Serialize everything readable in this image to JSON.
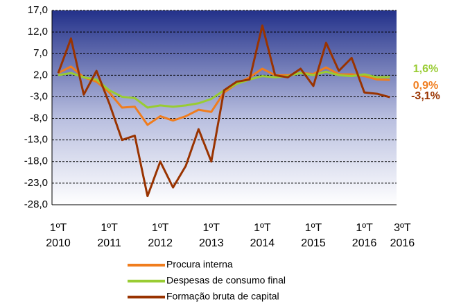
{
  "chart_data": {
    "type": "line",
    "categories": [
      "1ºT\n2010",
      null,
      null,
      null,
      "1ºT\n2011",
      null,
      null,
      null,
      "1ºT\n2012",
      null,
      null,
      null,
      "1ºT\n2013",
      null,
      null,
      null,
      "1ºT\n2014",
      null,
      null,
      null,
      "1ºT\n2015",
      null,
      null,
      null,
      "1ºT\n2016",
      null,
      "3ºT\n2016"
    ],
    "series": [
      {
        "name": "Procura interna",
        "color": "#f07d1e",
        "values": [
          2.5,
          4,
          1.5,
          0.5,
          -2,
          -5.5,
          -5.3,
          -9.5,
          -7.5,
          -8.5,
          -7.5,
          -6,
          -6.5,
          -2,
          0,
          1.5,
          3.5,
          2,
          2,
          2.5,
          2.3,
          3.8,
          2.2,
          2.2,
          1.8,
          1,
          0.9
        ],
        "value_labels": [
          null,
          null,
          null,
          null,
          null,
          null,
          null,
          null,
          null,
          null,
          null,
          null,
          null,
          null,
          null,
          null,
          null,
          null,
          null,
          null,
          null,
          null,
          null,
          null,
          null,
          null,
          "0,9%"
        ]
      },
      {
        "name": "Despesas de consumo final",
        "color": "#99cc33",
        "values": [
          2,
          2.5,
          1.5,
          1,
          -1.5,
          -3,
          -3.3,
          -5.5,
          -5,
          -5.3,
          -5,
          -4.5,
          -3.5,
          -1.5,
          0,
          1,
          1.8,
          1.5,
          1.8,
          2.5,
          2,
          2.8,
          2,
          1.8,
          2.2,
          1.5,
          1.6
        ],
        "value_labels": [
          null,
          null,
          null,
          null,
          null,
          null,
          null,
          null,
          null,
          null,
          null,
          null,
          null,
          null,
          null,
          null,
          null,
          null,
          null,
          null,
          null,
          null,
          null,
          null,
          null,
          null,
          "1,6%"
        ]
      },
      {
        "name": "Formação bruta de capital",
        "color": "#993300",
        "values": [
          2.5,
          10.5,
          -2.5,
          3,
          -4.5,
          -13,
          -12,
          -26,
          -18,
          -24,
          -19,
          -10.5,
          -18,
          -1.5,
          0.5,
          1,
          13.5,
          2,
          1.5,
          3.5,
          -0.5,
          9.5,
          3,
          6,
          -2,
          -2.3,
          -3.1
        ],
        "value_labels": [
          null,
          null,
          null,
          null,
          null,
          null,
          null,
          null,
          null,
          null,
          null,
          null,
          null,
          null,
          null,
          null,
          null,
          null,
          null,
          null,
          null,
          null,
          null,
          null,
          null,
          null,
          "-3,1%"
        ]
      }
    ],
    "ylim": [
      -28,
      17
    ],
    "yticks": [
      {
        "value": -28,
        "label": "-28,0"
      },
      {
        "value": -23,
        "label": "-23,0"
      },
      {
        "value": -18,
        "label": "-18,0"
      },
      {
        "value": -13,
        "label": "-13,0"
      },
      {
        "value": -8,
        "label": "-8,0"
      },
      {
        "value": -3,
        "label": "-3,0"
      },
      {
        "value": 2,
        "label": "2,0"
      },
      {
        "value": 7,
        "label": "7,0"
      },
      {
        "value": 12,
        "label": "12,0"
      },
      {
        "value": 17,
        "label": "17,0"
      }
    ],
    "grid": true
  }
}
